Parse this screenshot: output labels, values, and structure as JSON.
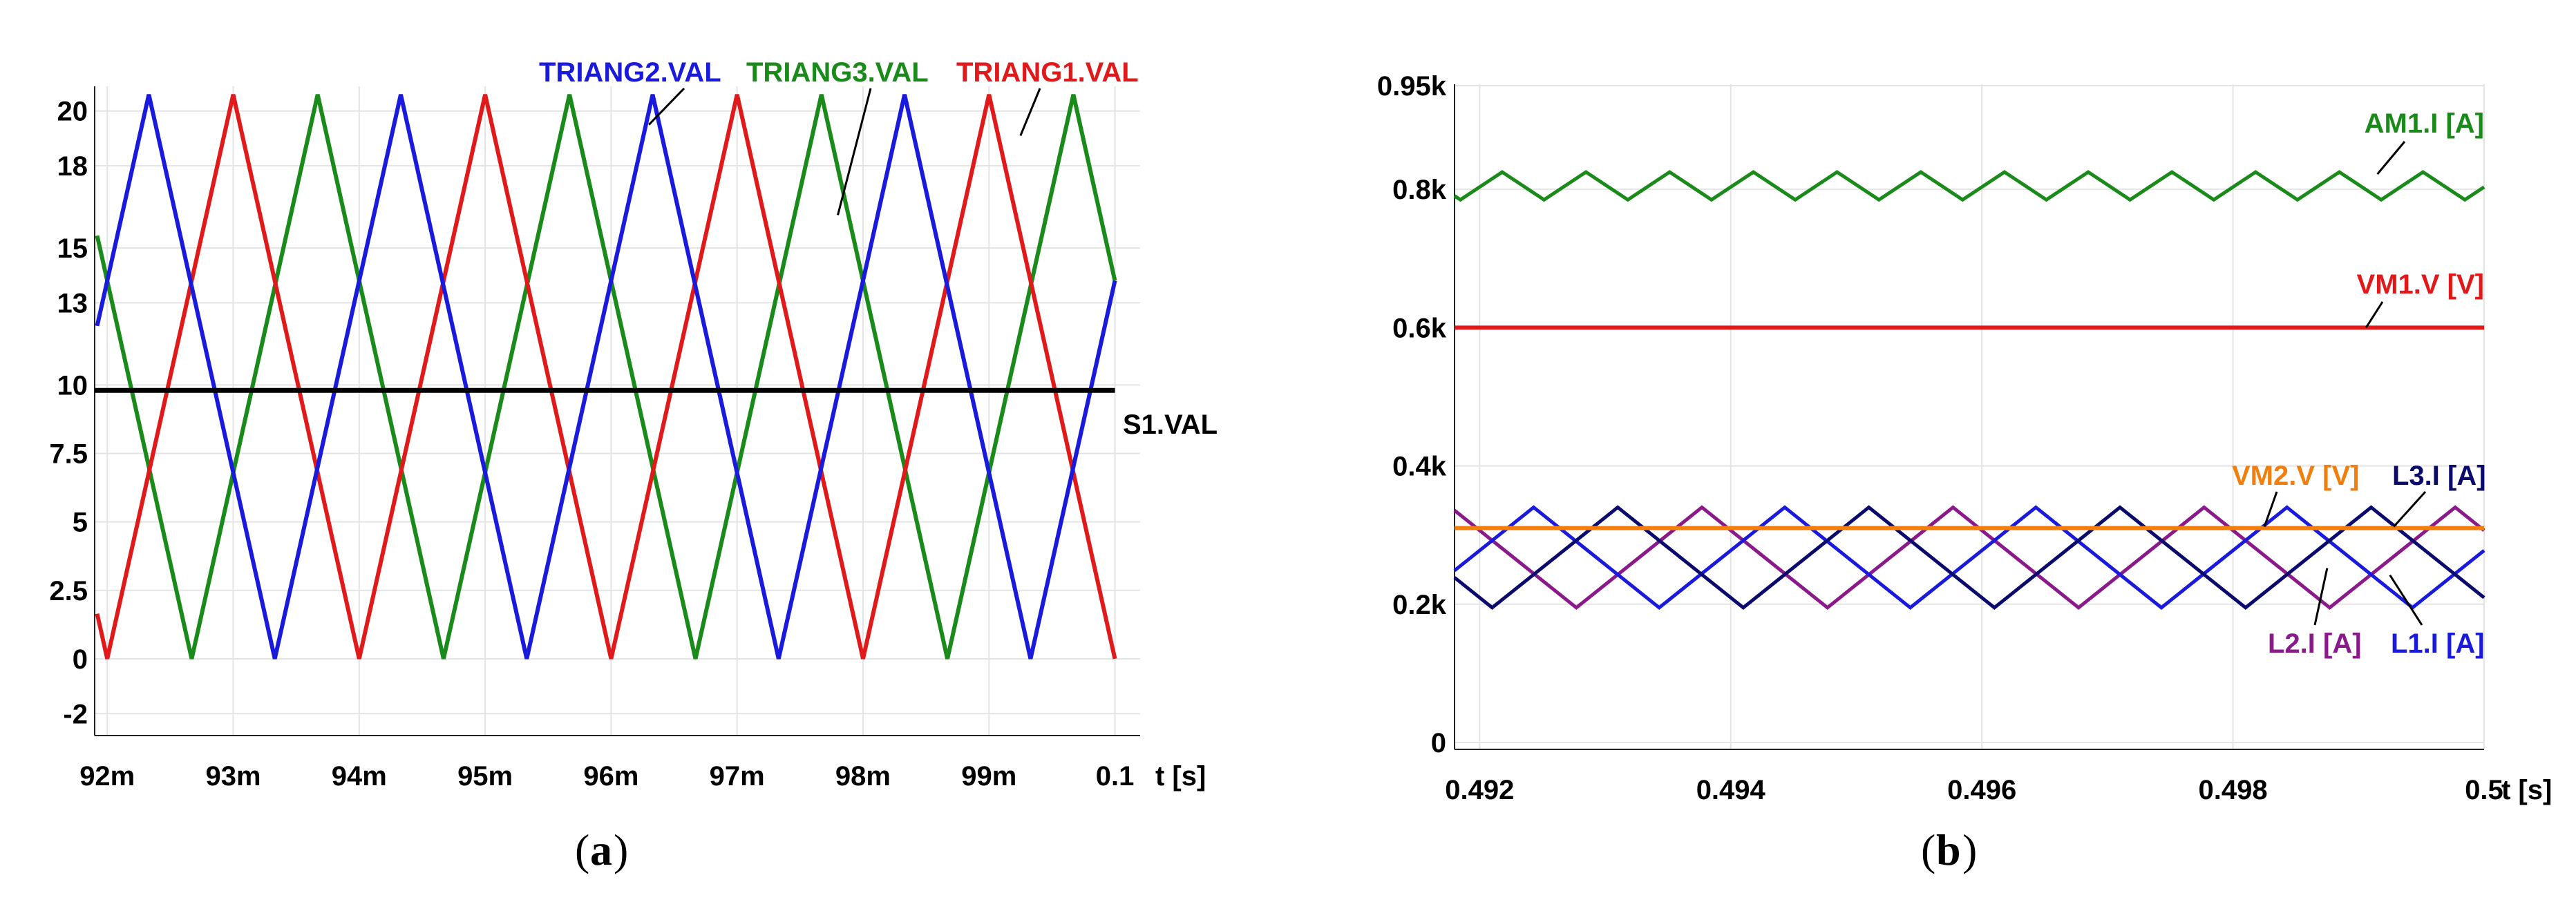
{
  "chart_data": [
    {
      "type": "line",
      "caption": "a",
      "xlabel": "t [s]",
      "xlim": [
        0.0919,
        0.1002
      ],
      "ylim": [
        -2.8,
        20.9
      ],
      "grid": true,
      "x_ticks": [
        0.092,
        0.093,
        0.094,
        0.095,
        0.096,
        0.097,
        0.098,
        0.099,
        0.1
      ],
      "x_tick_labels": [
        "92m",
        "93m",
        "94m",
        "95m",
        "96m",
        "97m",
        "98m",
        "99m",
        "0.1"
      ],
      "y_ticks": [
        -2,
        0,
        2.5,
        5,
        7.5,
        10,
        13,
        15,
        18,
        20
      ],
      "y_tick_labels": [
        "-2",
        "0",
        "2.5",
        "5",
        "7.5",
        "10",
        "13",
        "15",
        "18",
        "20"
      ],
      "triangle_wave": {
        "period": 0.002,
        "min": 0,
        "max": 20.6
      },
      "series": [
        {
          "name": "TRIANG2.VAL",
          "color": "#1a1adc",
          "phase_peak": 0.09233
        },
        {
          "name": "TRIANG3.VAL",
          "color": "#1a8a1a",
          "phase_peak": 0.09367
        },
        {
          "name": "TRIANG1.VAL",
          "color": "#e01a1a",
          "phase_peak": 0.093
        },
        {
          "name": "S1.VAL",
          "color": "#000000",
          "constant": 9.8
        }
      ]
    },
    {
      "type": "line",
      "caption": "b",
      "xlabel": "t [s]",
      "xlim": [
        0.4918,
        0.5
      ],
      "ylim": [
        -10,
        952
      ],
      "grid": true,
      "x_ticks": [
        0.492,
        0.494,
        0.496,
        0.498,
        0.5
      ],
      "x_tick_labels": [
        "0.492",
        "0.494",
        "0.496",
        "0.498",
        "0.5"
      ],
      "y_ticks": [
        0,
        200,
        400,
        600,
        800,
        950
      ],
      "y_tick_labels": [
        "0",
        "0.2k",
        "0.4k",
        "0.6k",
        "0.8k",
        "0.95k"
      ],
      "series": [
        {
          "name": "AM1.I [A]",
          "color": "#1a8a1a",
          "wave": {
            "period": 0.0006667,
            "min": 785,
            "max": 825,
            "phase_peak": 0.49218
          }
        },
        {
          "name": "VM1.V [V]",
          "color": "#e01a1a",
          "constant": 600
        },
        {
          "name": "VM2.V [V]",
          "color": "#f07f10",
          "constant": 310
        },
        {
          "name": "L3.I [A]",
          "color": "#0b0b6e",
          "wave": {
            "period": 0.002,
            "min": 195,
            "max": 340,
            "phase_peak": 0.4931
          }
        },
        {
          "name": "L2.I [A]",
          "color": "#8a1a8a",
          "wave": {
            "period": 0.002,
            "min": 195,
            "max": 340,
            "phase_peak": 0.49177
          }
        },
        {
          "name": "L1.I [A]",
          "color": "#1a1adc",
          "wave": {
            "period": 0.002,
            "min": 195,
            "max": 340,
            "phase_peak": 0.49243
          }
        }
      ]
    }
  ]
}
